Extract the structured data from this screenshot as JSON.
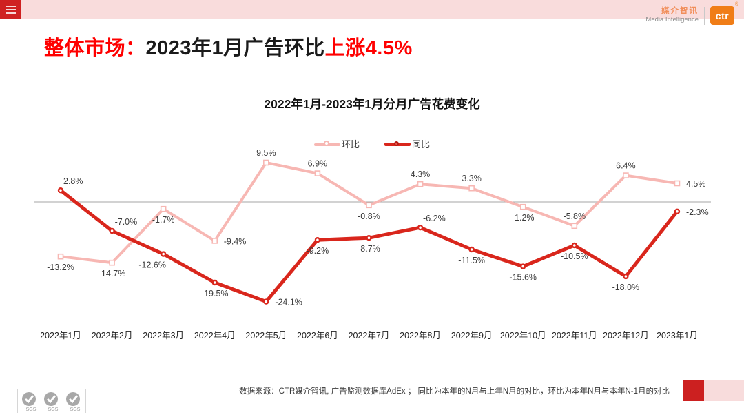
{
  "header": {
    "menu_icon": "hamburger-icon",
    "brand": {
      "cn": "媒介智讯",
      "en": "Media Intelligence",
      "logo_text": "ctr",
      "registered_mark": "®"
    }
  },
  "title": {
    "prefix": "整体市场：",
    "middle": "2023年1月广告环比",
    "highlight": "上涨4.5%"
  },
  "chart_data": {
    "type": "line",
    "title": "2022年1月-2023年1月分月广告花费变化",
    "categories": [
      "2022年1月",
      "2022年2月",
      "2022年3月",
      "2022年4月",
      "2022年5月",
      "2022年6月",
      "2022年7月",
      "2022年8月",
      "2022年9月",
      "2022年10月",
      "2022年11月",
      "2022年12月",
      "2023年1月"
    ],
    "series": [
      {
        "name": "环比",
        "color": "#f7b7b3",
        "marker": "square-white",
        "values": [
          -13.2,
          -14.7,
          -1.7,
          -9.4,
          9.5,
          6.9,
          -0.8,
          4.3,
          3.3,
          -1.2,
          -5.8,
          6.4,
          4.5
        ],
        "label_pos": [
          "b",
          "b",
          "b",
          "r",
          "a",
          "a",
          "b",
          "a",
          "a",
          "b",
          "a",
          "a",
          "r"
        ]
      },
      {
        "name": "同比",
        "color": "#d9261c",
        "marker": "dot-white-center",
        "values": [
          2.8,
          -7.0,
          -12.6,
          -19.5,
          -24.1,
          -9.2,
          -8.7,
          -6.2,
          -11.5,
          -15.6,
          -10.5,
          -18.0,
          -2.3
        ],
        "label_pos": [
          "ar",
          "ar",
          "bl",
          "b",
          "r",
          "b",
          "b",
          "ar",
          "b",
          "b",
          "b",
          "b",
          "r"
        ]
      }
    ],
    "value_suffix": "%",
    "ylim": [
      -28,
      12
    ],
    "baseline": 0,
    "grid": false,
    "baseline_color": "#a6a6a6",
    "legend_position": "top-center"
  },
  "footer": {
    "source": "数据来源：CTR媒介智讯, 广告监测数据库AdEx ； 同比为本年的N月与上年N月的对比，环比为本年N月与本年N-1月的对比",
    "sgs_label": "SGS"
  },
  "colors": {
    "accent_red": "#cf2121",
    "band_pink": "#f9dcdc",
    "title_red": "#ff0000",
    "momo_pink": "#f7b7b3",
    "yoy_red": "#d9261c",
    "ctr_orange": "#f07d17"
  }
}
